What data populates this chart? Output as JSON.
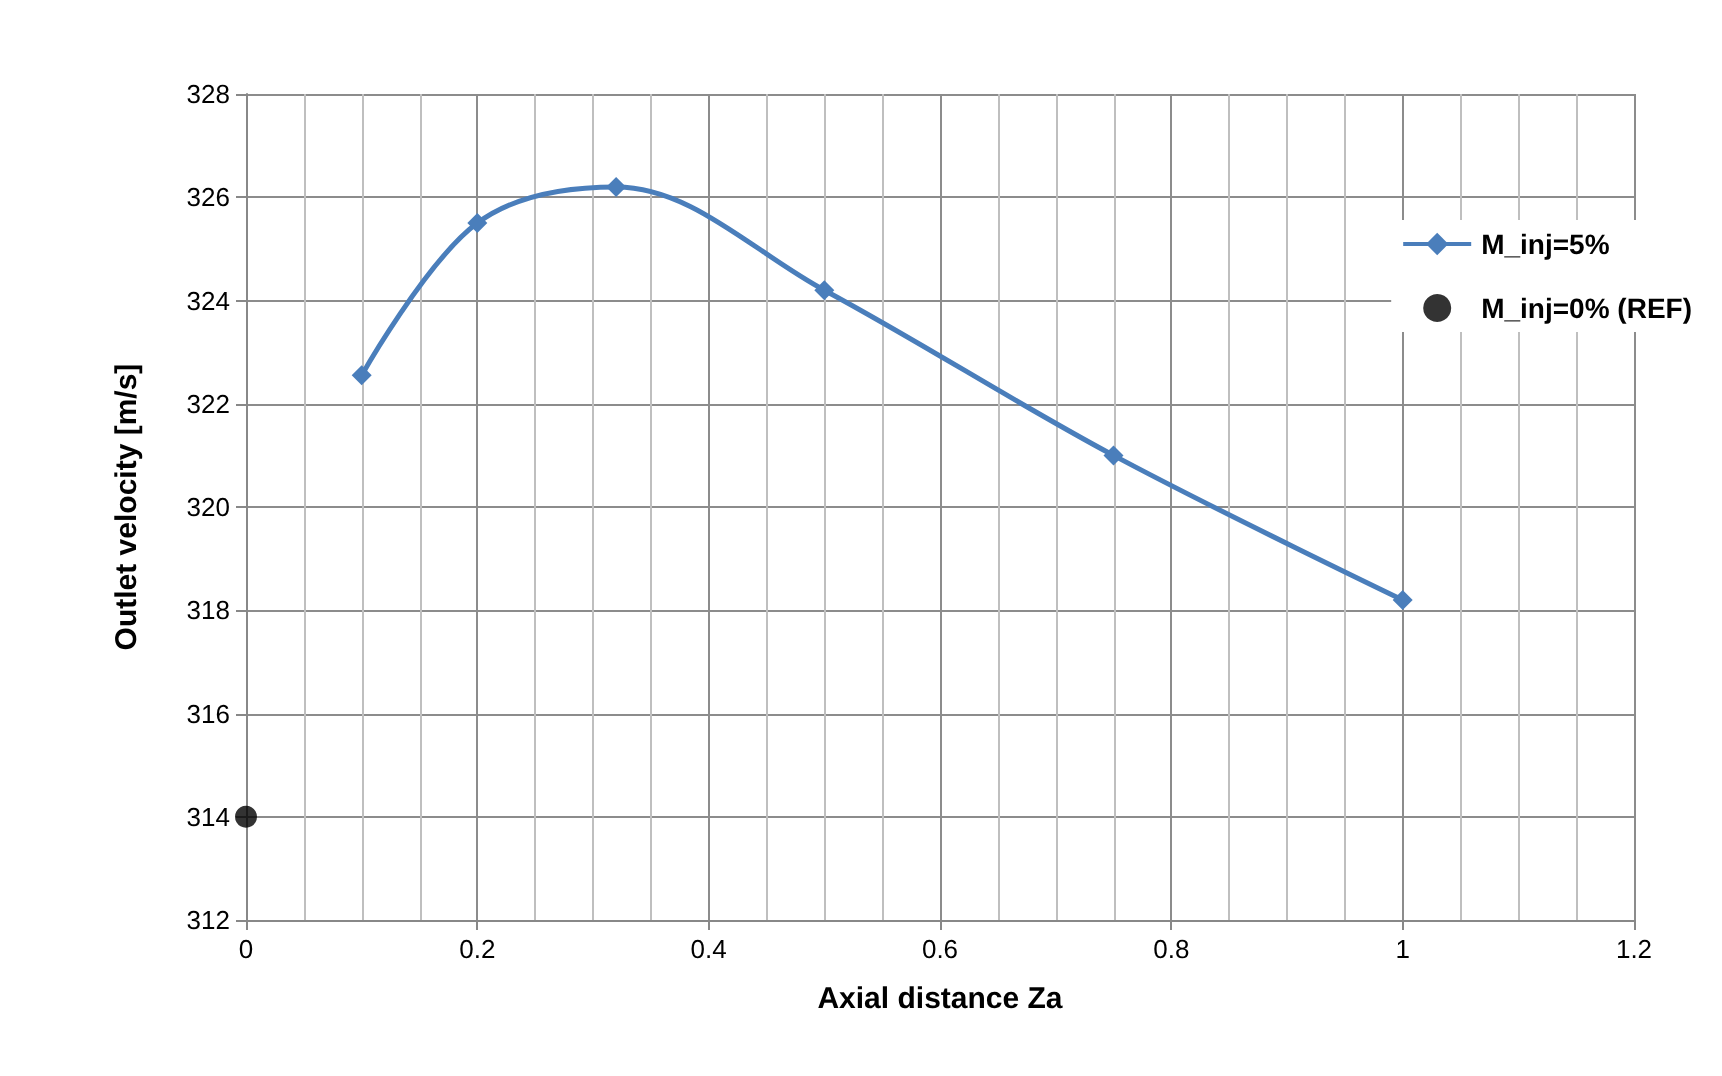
{
  "chart_data": {
    "type": "line",
    "xlabel": "Axial distance Za",
    "ylabel": "Outlet velocity [m/s]",
    "series": [
      {
        "name": "M_inj=5%",
        "color": "#4a7ebb",
        "marker": "diamond",
        "x": [
          0.1,
          0.2,
          0.32,
          0.5,
          0.75,
          1.0
        ],
        "values": [
          322.55,
          325.5,
          326.2,
          324.2,
          321,
          318.2
        ]
      },
      {
        "name": "M_inj=0% (REF)",
        "type": "scatter",
        "color": "#000000",
        "marker": "circle",
        "x": [
          0
        ],
        "values": [
          314
        ]
      }
    ],
    "xlim": [
      0,
      1.2
    ],
    "xticks": [
      0,
      0.2,
      0.4,
      0.6,
      0.8,
      1,
      1.2
    ],
    "ylim": [
      312,
      328
    ],
    "yticks": [
      312,
      314,
      316,
      318,
      320,
      322,
      324,
      326,
      328
    ],
    "grid": true,
    "legend": "right"
  }
}
